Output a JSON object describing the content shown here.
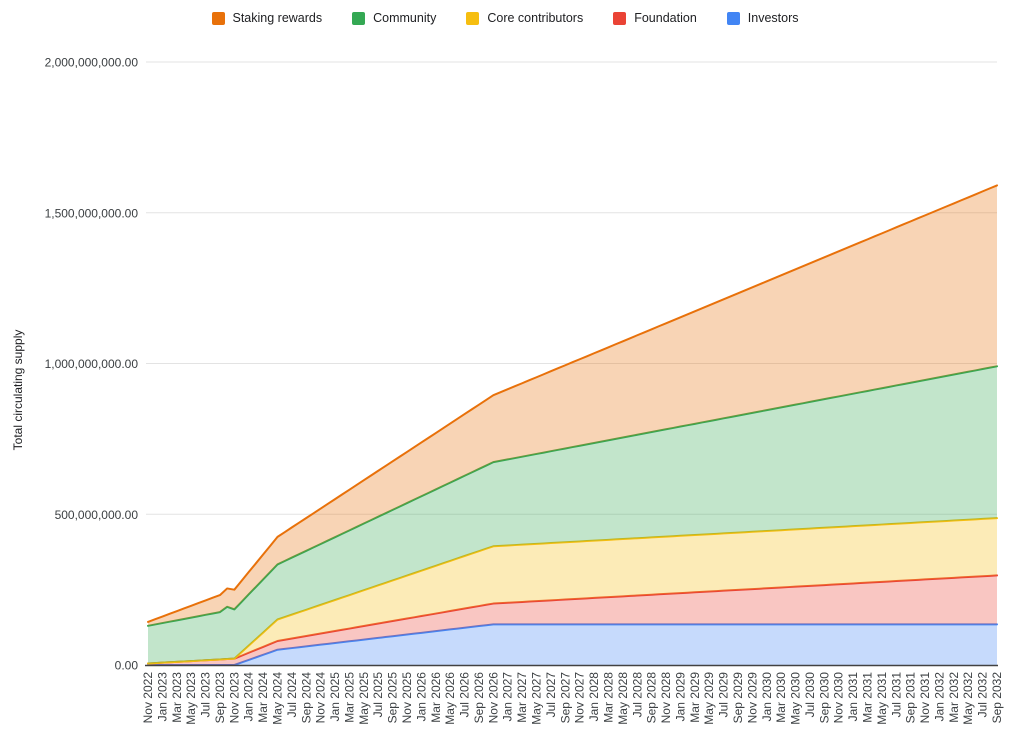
{
  "chart_data": {
    "type": "area",
    "stacked": true,
    "title": "",
    "ylabel": "Total circulating supply",
    "xlabel": "",
    "grid": true,
    "legend_position": "top",
    "ylim": [
      0,
      2000000000
    ],
    "values_unit": "tokens, in millions (multiply by 1,000,000)",
    "x_resolution": "monthly points from Nov 2022 to Sep 2032 (119 points); axis shows every 2nd month",
    "fill_opacity": 0.3,
    "y_ticks": [
      {
        "label": "0.00",
        "value_millions": 0
      },
      {
        "label": "500,000,000.00",
        "value_millions": 500
      },
      {
        "label": "1,000,000,000.00",
        "value_millions": 1000
      },
      {
        "label": "1,500,000,000.00",
        "value_millions": 1500
      },
      {
        "label": "2,000,000,000.00",
        "value_millions": 2000
      }
    ],
    "x_tick_labels": [
      "Nov 2022",
      "Jan 2023",
      "Mar 2023",
      "May 2023",
      "Jul 2023",
      "Sep 2023",
      "Nov 2023",
      "Jan 2024",
      "Mar 2024",
      "May 2024",
      "Jul 2024",
      "Sep 2024",
      "Nov 2024",
      "Jan 2025",
      "Mar 2025",
      "May 2025",
      "Jul 2025",
      "Sep 2025",
      "Nov 2025",
      "Jan 2026",
      "Mar 2026",
      "May 2026",
      "Jul 2026",
      "Sep 2026",
      "Nov 2026",
      "Jan 2027",
      "Mar 2027",
      "May 2027",
      "Jul 2027",
      "Sep 2027",
      "Nov 2027",
      "Jan 2028",
      "Mar 2028",
      "May 2028",
      "Jul 2028",
      "Sep 2028",
      "Nov 2028",
      "Jan 2029",
      "Mar 2029",
      "May 2029",
      "Jul 2029",
      "Sep 2029",
      "Nov 2029",
      "Jan 2030",
      "Mar 2030",
      "May 2030",
      "Jul 2030",
      "Sep 2030",
      "Nov 2030",
      "Jan 2031",
      "Mar 2031",
      "May 2031",
      "Jul 2031",
      "Sep 2031",
      "Nov 2031",
      "Jan 2032",
      "Mar 2032",
      "May 2032",
      "Jul 2032",
      "Sep 2032"
    ],
    "series": [
      {
        "name": "Investors",
        "color": "#4285F4",
        "stack_order": "bottom (1 of 5)",
        "values": [
          0,
          0,
          0,
          0,
          0,
          0,
          0,
          0,
          0,
          0,
          0,
          0,
          0,
          8.4,
          16.9,
          25.3,
          33.7,
          42.1,
          50.6,
          53.4,
          56.2,
          59,
          61.8,
          64.6,
          67.4,
          70.2,
          73,
          75.8,
          78.6,
          81.4,
          84.3,
          87.1,
          89.9,
          92.7,
          95.5,
          98.3,
          101.1,
          103.9,
          106.7,
          109.5,
          112.3,
          115.1,
          118,
          120.8,
          123.6,
          126.4,
          129.2,
          132,
          134.8,
          134.8,
          134.8,
          134.8,
          134.8,
          134.8,
          134.8,
          134.8,
          134.8,
          134.8,
          134.8,
          134.8,
          134.8,
          134.8,
          134.8,
          134.8,
          134.8,
          134.8,
          134.8,
          134.8,
          134.8,
          134.8,
          134.8,
          134.8,
          134.8,
          134.8,
          134.8,
          134.8,
          134.8,
          134.8,
          134.8,
          134.8,
          134.8,
          134.8,
          134.8,
          134.8,
          134.8,
          134.8,
          134.8,
          134.8,
          134.8,
          134.8,
          134.8,
          134.8,
          134.8,
          134.8,
          134.8,
          134.8,
          134.8,
          134.8,
          134.8,
          134.8,
          134.8,
          134.8,
          134.8,
          134.8,
          134.8,
          134.8,
          134.8,
          134.8,
          134.8,
          134.8,
          134.8,
          134.8,
          134.8,
          134.8,
          134.8,
          134.8,
          134.8,
          134.8,
          134.8
        ]
      },
      {
        "name": "Foundation",
        "color": "#EA4335",
        "stack_order": "2 of 5",
        "values": [
          5,
          6.3,
          7.7,
          9,
          10.3,
          11.7,
          13,
          14.3,
          15.7,
          17,
          18.3,
          19.7,
          21,
          22.3,
          23.7,
          25,
          26.3,
          27.7,
          29,
          30.3,
          31.7,
          33,
          34.3,
          35.7,
          37,
          38.3,
          39.7,
          41,
          42.3,
          43.7,
          45,
          46.3,
          47.7,
          49,
          50.3,
          51.7,
          53,
          54.3,
          55.7,
          57,
          58.3,
          59.7,
          61,
          62.3,
          63.7,
          65,
          66.3,
          67.7,
          69,
          70.3,
          71.7,
          73,
          74.3,
          75.7,
          77,
          78.3,
          79.7,
          81,
          82.3,
          83.7,
          85,
          86.3,
          87.7,
          89,
          90.3,
          91.7,
          93,
          94.3,
          95.7,
          97,
          98.3,
          99.7,
          101,
          102.3,
          103.7,
          105,
          106.3,
          107.7,
          109,
          110.3,
          111.7,
          113,
          114.3,
          115.7,
          117,
          118.3,
          119.7,
          121,
          122.3,
          123.7,
          125,
          126.3,
          127.7,
          129,
          130.3,
          131.7,
          133,
          134.3,
          135.7,
          137,
          138.3,
          139.7,
          141,
          142.3,
          143.7,
          145,
          146.3,
          147.7,
          149,
          150.3,
          151.7,
          153,
          154.3,
          155.7,
          157,
          158.3,
          159.7,
          161,
          162.3
        ]
      },
      {
        "name": "Core contributors",
        "color": "#F6BE10",
        "stack_order": "3 of 5",
        "values": [
          0,
          0,
          0,
          0,
          0,
          0,
          0,
          0,
          0,
          0,
          0,
          0,
          0,
          11.9,
          23.8,
          35.6,
          47.5,
          59.4,
          71.3,
          75.2,
          79.2,
          83.1,
          87.1,
          91,
          95,
          99,
          102.9,
          106.9,
          110.8,
          114.8,
          118.8,
          122.7,
          126.7,
          130.6,
          134.6,
          138.5,
          142.5,
          146.5,
          150.4,
          154.4,
          158.3,
          162.3,
          166.3,
          170.2,
          174.2,
          178.1,
          182.1,
          186,
          190,
          190,
          190,
          190,
          190,
          190,
          190,
          190,
          190,
          190,
          190,
          190,
          190,
          190,
          190,
          190,
          190,
          190,
          190,
          190,
          190,
          190,
          190,
          190,
          190,
          190,
          190,
          190,
          190,
          190,
          190,
          190,
          190,
          190,
          190,
          190,
          190,
          190,
          190,
          190,
          190,
          190,
          190,
          190,
          190,
          190,
          190,
          190,
          190,
          190,
          190,
          190,
          190,
          190,
          190,
          190,
          190,
          190,
          190,
          190,
          190,
          190,
          190,
          190,
          190,
          190,
          190,
          190,
          190,
          190,
          190
        ]
      },
      {
        "name": "Community",
        "color": "#34A853",
        "stack_order": "4 of 5",
        "values": [
          125,
          128.2,
          131.4,
          134.6,
          137.8,
          141,
          144.2,
          147.5,
          150.7,
          153.9,
          157.1,
          173.3,
          163.5,
          166.7,
          169.9,
          173.1,
          176.3,
          179.5,
          182.7,
          186,
          189.2,
          192.4,
          195.6,
          198.8,
          202,
          205.2,
          208.4,
          211.6,
          214.8,
          218,
          221.2,
          224.5,
          227.7,
          230.9,
          234.1,
          237.3,
          240.5,
          243.7,
          246.9,
          250.1,
          253.3,
          256.5,
          259.7,
          263,
          266.2,
          269.4,
          272.6,
          275.8,
          279,
          282.2,
          285.4,
          288.6,
          291.8,
          295,
          298.2,
          301.4,
          304.7,
          307.9,
          311.1,
          314.3,
          317.5,
          320.7,
          323.9,
          327.1,
          330.3,
          333.5,
          336.7,
          339.9,
          343.2,
          346.4,
          349.6,
          352.8,
          356,
          359.2,
          362.4,
          365.6,
          368.8,
          372,
          375.2,
          378.4,
          381.7,
          384.9,
          388.1,
          391.3,
          394.5,
          397.7,
          400.9,
          404.1,
          407.3,
          410.5,
          413.7,
          416.9,
          420.2,
          423.4,
          426.6,
          429.8,
          433,
          436.2,
          439.4,
          442.6,
          445.8,
          449,
          452.2,
          455.4,
          458.7,
          461.9,
          465.1,
          468.3,
          471.5,
          474.7,
          477.9,
          481.1,
          484.3,
          487.5,
          490.7,
          493.9,
          497.2,
          500.4,
          503.6
        ]
      },
      {
        "name": "Staking rewards",
        "color": "#E8710A",
        "stack_order": "top (5 of 5)",
        "values": [
          13,
          17.4,
          21.7,
          26.1,
          30.4,
          34.8,
          39.1,
          43.5,
          47.8,
          52.2,
          56.5,
          60.9,
          65.3,
          69.6,
          74,
          78.3,
          82.7,
          87,
          91.4,
          95.7,
          100.1,
          104.4,
          108.8,
          113.1,
          117.5,
          121.9,
          126.2,
          130.6,
          134.9,
          139.3,
          143.6,
          148,
          152.3,
          156.7,
          161,
          165.4,
          169.7,
          174.1,
          178.5,
          182.8,
          187.2,
          191.5,
          195.9,
          200.2,
          204.6,
          208.9,
          213.3,
          217.6,
          222,
          227.4,
          232.8,
          238.2,
          243.6,
          249,
          254.4,
          259.8,
          265.2,
          270.6,
          276,
          281.4,
          286.8,
          292.2,
          297.6,
          303,
          308.4,
          313.8,
          319.2,
          324.6,
          330,
          335.4,
          340.8,
          346.2,
          351.6,
          357,
          362.4,
          367.8,
          373.2,
          378.6,
          384,
          389.4,
          394.8,
          400.2,
          405.6,
          411,
          416.4,
          421.8,
          427.2,
          432.6,
          438,
          443.4,
          448.8,
          454.2,
          459.6,
          465,
          470.4,
          475.8,
          481.2,
          486.6,
          492,
          497.4,
          502.8,
          508.2,
          513.6,
          519,
          524.4,
          529.8,
          535.2,
          540.6,
          546,
          551.4,
          556.8,
          562.2,
          567.6,
          573,
          578.4,
          583.8,
          589.2,
          594.6,
          600
        ]
      }
    ],
    "legend_display_order": [
      "Staking rewards",
      "Community",
      "Core contributors",
      "Foundation",
      "Investors"
    ]
  },
  "colors": {
    "gridline": "#e3e3e3",
    "axis_line": "#424242",
    "tick_text": "#3c4043"
  }
}
